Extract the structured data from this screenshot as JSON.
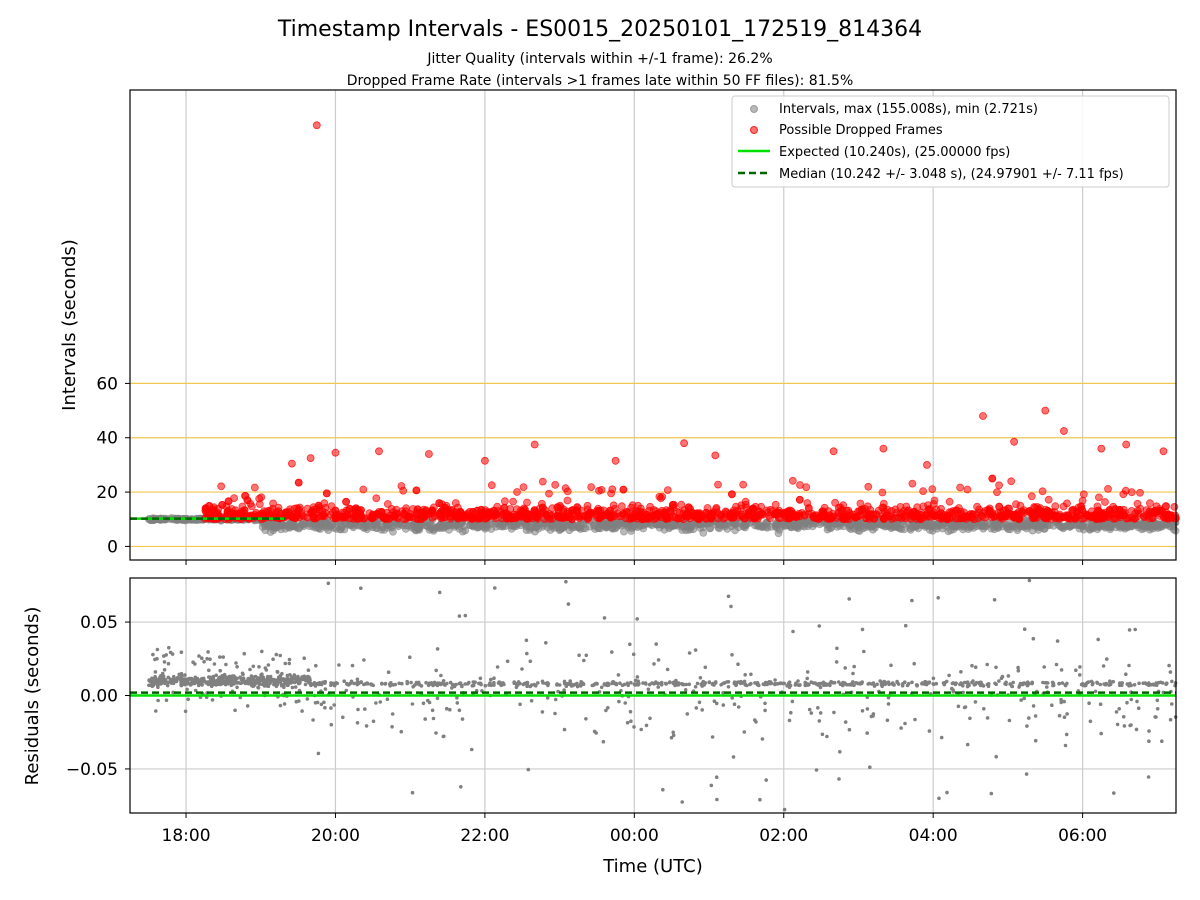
{
  "title": "Timestamp Intervals - ES0015_20250101_172519_814364",
  "subtitle_1": "Jitter Quality (intervals within +/-1 frame): 26.2%",
  "subtitle_2": "Dropped Frame Rate (intervals >1 frames late within 50 FF files): 81.5%",
  "xlabel": "Time (UTC)",
  "colors": {
    "intervals": "#808080",
    "dropped": "#ff0000",
    "expected": "#00e000",
    "median": "#006400",
    "ref_lines": "#f0c850",
    "grid": "#cccccc"
  },
  "chart_data": [
    {
      "type": "scatter",
      "panel": "top",
      "ylabel": "Intervals (seconds)",
      "xlim": [
        "17:15",
        "07:15"
      ],
      "ylim": [
        -5,
        168
      ],
      "y_ticks": [
        "0",
        "20",
        "40",
        "60"
      ],
      "x_tick_values": [
        "18:00",
        "20:00",
        "22:00",
        "00:00",
        "02:00",
        "04:00",
        "06:00"
      ],
      "grid": "x gridlines on; horizontal reference lines at 0, 20, 40, 60",
      "legend_position": "upper right",
      "legend": [
        "Intervals, max (155.008s), min (2.721s)",
        "Possible Dropped Frames",
        "Expected (10.240s), (25.00000 fps)",
        "Median (10.242 +/- 3.048 s), (24.97901 +/- 7.11 fps)"
      ],
      "expected_interval": 10.24,
      "median_interval": 10.242,
      "max_interval": 155.008,
      "min_interval": 2.721,
      "series": [
        {
          "name": "Intervals, max (155.008s), min (2.721s)",
          "description": "dense band of normal intervals",
          "x_start": "17:30",
          "x_end": "07:15",
          "y_center": 8,
          "y_spread": [
            3,
            12
          ]
        },
        {
          "name": "Possible Dropped Frames",
          "x_start": "18:15",
          "x_end": "07:15",
          "y_band": [
            10,
            20
          ],
          "outliers": [
            {
              "x": "19:45",
              "y": 155
            },
            {
              "x": "19:25",
              "y": 30.5
            },
            {
              "x": "19:40",
              "y": 32.5
            },
            {
              "x": "20:00",
              "y": 34.5
            },
            {
              "x": "20:35",
              "y": 35
            },
            {
              "x": "21:15",
              "y": 34
            },
            {
              "x": "22:00",
              "y": 31.5
            },
            {
              "x": "22:40",
              "y": 37.5
            },
            {
              "x": "23:45",
              "y": 31.5
            },
            {
              "x": "00:40",
              "y": 38
            },
            {
              "x": "01:05",
              "y": 33.5
            },
            {
              "x": "02:40",
              "y": 35
            },
            {
              "x": "03:20",
              "y": 36
            },
            {
              "x": "03:55",
              "y": 30
            },
            {
              "x": "04:40",
              "y": 48
            },
            {
              "x": "05:05",
              "y": 38.5
            },
            {
              "x": "05:30",
              "y": 50
            },
            {
              "x": "05:45",
              "y": 42.5
            },
            {
              "x": "06:15",
              "y": 36
            },
            {
              "x": "06:35",
              "y": 37.5
            },
            {
              "x": "07:05",
              "y": 35
            }
          ]
        }
      ]
    },
    {
      "type": "scatter",
      "panel": "bottom",
      "ylabel": "Residuals (seconds)",
      "xlim": [
        "17:15",
        "07:15"
      ],
      "ylim": [
        -0.08,
        0.08
      ],
      "y_ticks": [
        "−0.05",
        "0.00",
        "0.05"
      ],
      "x_tick_labels": [
        "18:00",
        "20:00",
        "22:00",
        "00:00",
        "02:00",
        "04:00",
        "06:00"
      ],
      "grid": "on",
      "series": [
        {
          "name": "Residuals",
          "dense_cluster": {
            "x_start": "17:30",
            "x_end": "19:40",
            "y_center": 0.01
          },
          "scattered": {
            "x_start": "19:40",
            "x_end": "07:15",
            "y_range": [
              -0.08,
              0.08
            ],
            "y_center": 0.008
          }
        }
      ],
      "expected_line_y": 0.0,
      "median_line_y": 0.002
    }
  ]
}
